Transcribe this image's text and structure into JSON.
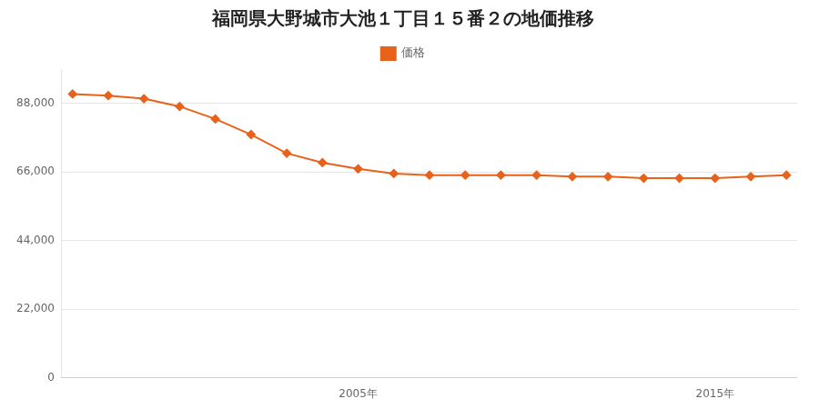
{
  "chart_data": {
    "type": "line",
    "title": "福岡県大野城市大池１丁目１５番２の地価推移",
    "x": [
      1997,
      1998,
      1999,
      2000,
      2001,
      2002,
      2003,
      2004,
      2005,
      2006,
      2007,
      2008,
      2009,
      2010,
      2011,
      2012,
      2013,
      2014,
      2015,
      2016,
      2017
    ],
    "series": [
      {
        "name": "価格",
        "color": "#e8621a",
        "marker": "diamond",
        "values": [
          91000,
          90500,
          89500,
          87000,
          83000,
          78000,
          72000,
          69000,
          67000,
          65500,
          65000,
          65000,
          65000,
          65000,
          64500,
          64500,
          64000,
          64000,
          64000,
          64500,
          65000
        ]
      }
    ],
    "xlim": [
      1996.7,
      2017.3
    ],
    "xticks": [
      {
        "value": 2005,
        "label": "2005年"
      },
      {
        "value": 2015,
        "label": "2015年"
      }
    ],
    "ylim": [
      0,
      99000
    ],
    "yticks": [
      0,
      {
        "value": 22000,
        "label": "22,000"
      },
      {
        "value": 44000,
        "label": "44,000"
      },
      {
        "value": 66000,
        "label": "66,000"
      },
      {
        "value": 88000,
        "label": "88,000"
      }
    ],
    "grid": true,
    "legend": "top"
  }
}
